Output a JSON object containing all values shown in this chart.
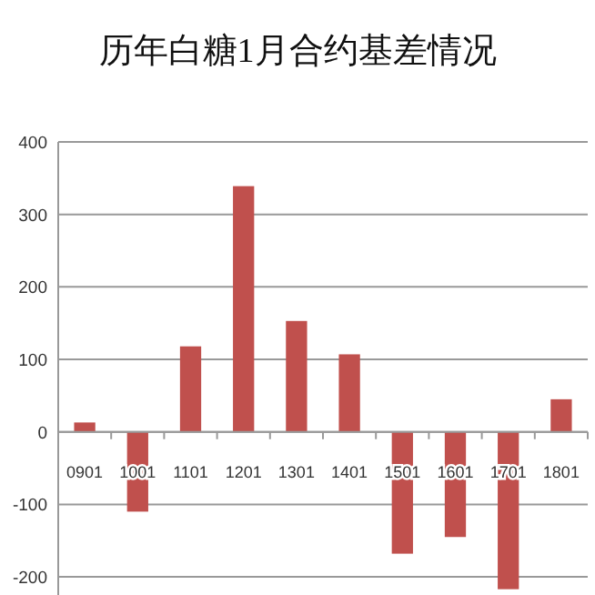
{
  "chart_data": {
    "type": "bar",
    "title": "历年白糖1月合约基差情况",
    "categories": [
      "0901",
      "1001",
      "1101",
      "1201",
      "1301",
      "1401",
      "1501",
      "1601",
      "1701",
      "1801"
    ],
    "values": [
      13,
      -110,
      118,
      339,
      153,
      107,
      -168,
      -145,
      -217,
      45
    ],
    "color": "#c0504d",
    "ylim": [
      -225,
      400
    ],
    "yticks": [
      -200,
      -100,
      0,
      100,
      200,
      300,
      400
    ],
    "grid": "y"
  }
}
